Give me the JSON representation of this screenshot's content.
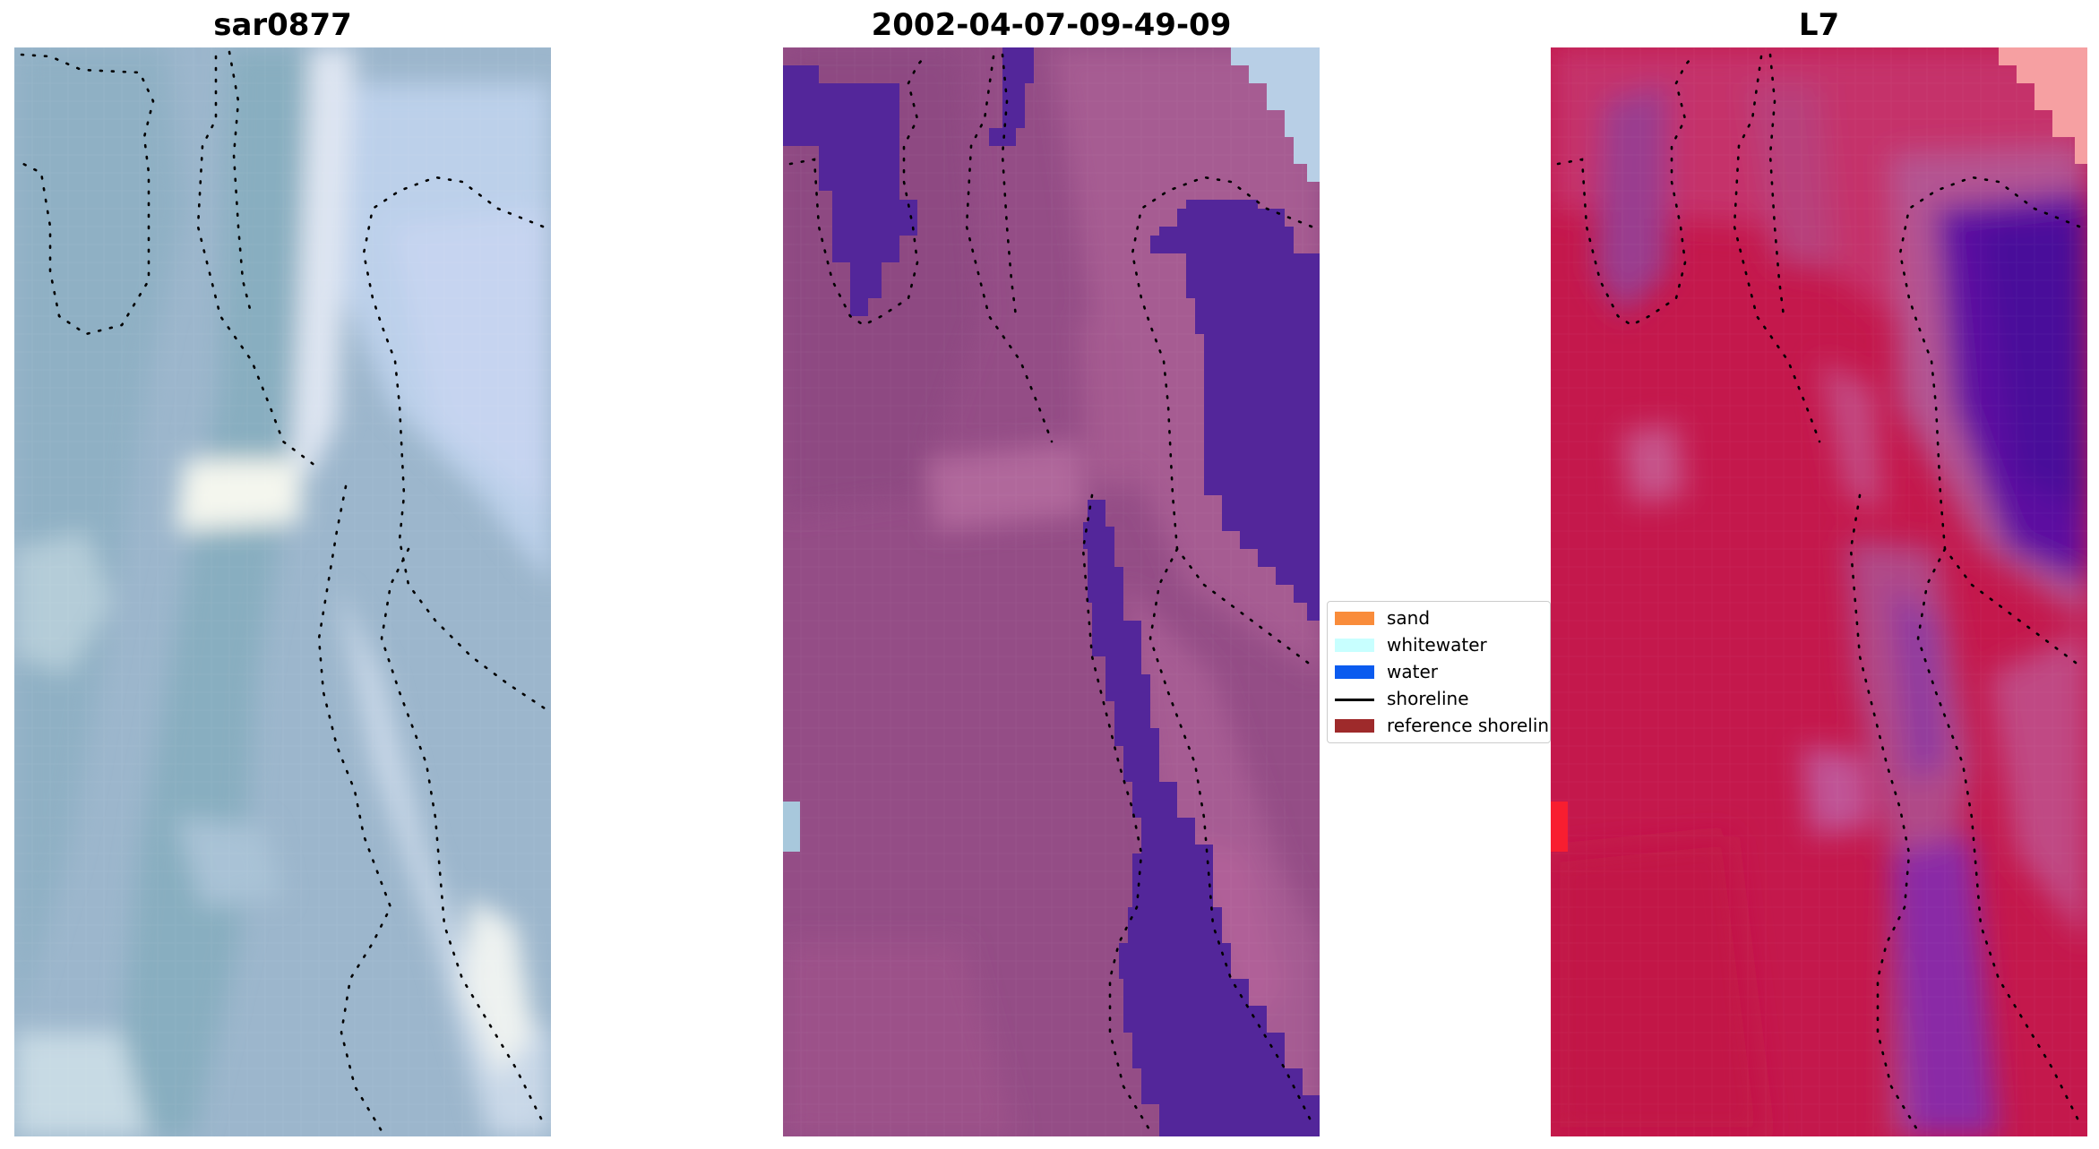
{
  "panels": [
    {
      "title": "sar0877",
      "icon": "rgb-satellite-image"
    },
    {
      "title": "2002-04-07-09-49-09",
      "icon": "classified-satellite-image"
    },
    {
      "title": "L7",
      "icon": "index-satellite-image"
    }
  ],
  "legend": {
    "items": [
      {
        "label": "sand",
        "color": "#f98c3b",
        "kind": "patch"
      },
      {
        "label": "whitewater",
        "color": "#c8ffff",
        "kind": "patch"
      },
      {
        "label": "water",
        "color": "#0b5bef",
        "kind": "patch"
      },
      {
        "label": "shoreline",
        "color": "#000000",
        "kind": "line"
      },
      {
        "label": "reference shoreline",
        "color": "#9e2a2b",
        "kind": "patch"
      }
    ]
  }
}
